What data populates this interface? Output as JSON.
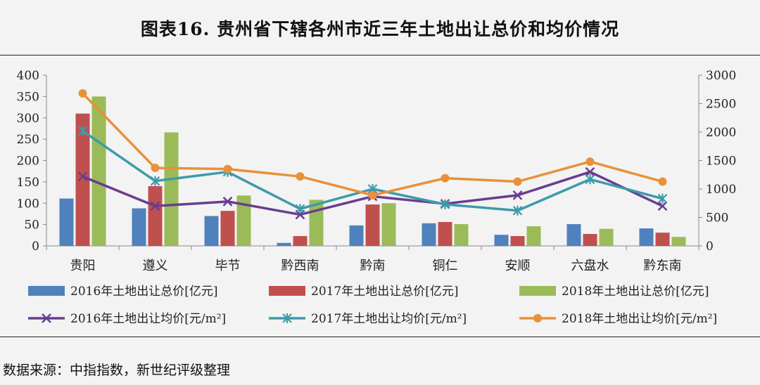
{
  "title": "图表16. 贵州省下辖各州市近三年土地出让总价和均价情况",
  "source": "数据来源：中指指数，新世纪评级整理",
  "chart_data": {
    "type": "bar",
    "categories": [
      "贵阳",
      "遵义",
      "毕节",
      "黔西南",
      "黔南",
      "铜仁",
      "安顺",
      "六盘水",
      "黔东南"
    ],
    "y_left": {
      "ticks": [
        0,
        50,
        100,
        150,
        200,
        250,
        300,
        350,
        400
      ],
      "ylim": [
        0,
        400
      ]
    },
    "y_right": {
      "ticks": [
        0,
        500,
        1000,
        1500,
        2000,
        2500,
        3000
      ],
      "ylim": [
        0,
        3000
      ]
    },
    "grid": false,
    "legend_position": "bottom",
    "bar_series": [
      {
        "name": "2016年土地出让总价[亿元]",
        "color": "#4f81bd",
        "values": [
          111,
          88,
          70,
          7,
          48,
          53,
          26,
          51,
          41
        ]
      },
      {
        "name": "2017年土地出让总价[亿元]",
        "color": "#c0504d",
        "values": [
          310,
          140,
          82,
          23,
          97,
          56,
          23,
          28,
          31
        ]
      },
      {
        "name": "2018年土地出让总价[亿元]",
        "color": "#9bbb59",
        "values": [
          350,
          266,
          118,
          108,
          100,
          51,
          46,
          40,
          21
        ]
      }
    ],
    "line_series": [
      {
        "name": "2016年土地出让均价[元/m²]",
        "color": "#6a3d8f",
        "marker": "x",
        "values": [
          1220,
          700,
          780,
          550,
          870,
          740,
          890,
          1300,
          700
        ]
      },
      {
        "name": "2017年土地出让均价[元/m²]",
        "color": "#3d9bab",
        "marker": "star",
        "values": [
          2020,
          1140,
          1300,
          650,
          1000,
          730,
          620,
          1170,
          830
        ]
      },
      {
        "name": "2018年土地出让均价[元/m²]",
        "color": "#e8913a",
        "marker": "circle",
        "values": [
          2680,
          1370,
          1350,
          1220,
          890,
          1190,
          1130,
          1480,
          1130
        ]
      }
    ]
  }
}
